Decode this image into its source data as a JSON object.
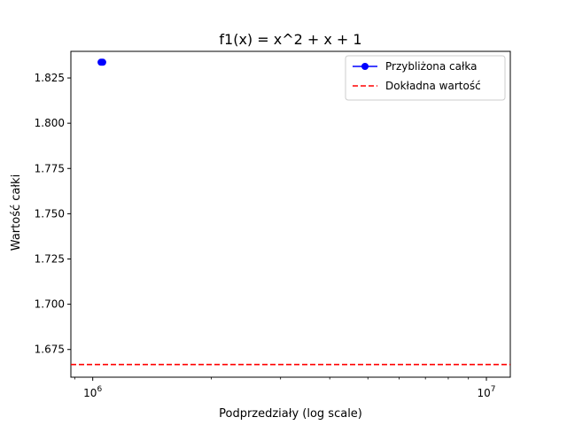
{
  "chart_data": {
    "type": "line",
    "title": "f1(x) = x^2 + x + 1",
    "xlabel": "Podprzedziały (log scale)",
    "ylabel": "Wartość całki",
    "x_scale": "log",
    "xlim": [
      880000,
      11500000
    ],
    "ylim": [
      1.6597,
      1.8397
    ],
    "x_ticks": [
      {
        "value": 1000000,
        "label": "10",
        "exp": "6"
      },
      {
        "value": 10000000,
        "label": "10",
        "exp": "7"
      }
    ],
    "y_ticks": [
      {
        "value": 1.675,
        "label": "1.675"
      },
      {
        "value": 1.7,
        "label": "1.700"
      },
      {
        "value": 1.725,
        "label": "1.725"
      },
      {
        "value": 1.75,
        "label": "1.750"
      },
      {
        "value": 1.775,
        "label": "1.775"
      },
      {
        "value": 1.8,
        "label": "1.800"
      },
      {
        "value": 1.825,
        "label": "1.825"
      }
    ],
    "grid": false,
    "legend_position": "top-right",
    "series": [
      {
        "name": "Przybliżona całka",
        "style": "line-marker",
        "color": "#0000ff",
        "points": [
          {
            "x": 1050000,
            "y": 1.8337
          },
          {
            "x": 1060000,
            "y": 1.8337
          }
        ]
      },
      {
        "name": "Dokładna wartość",
        "style": "dashed-hline",
        "color": "#ff0000",
        "y": 1.6667
      }
    ]
  }
}
